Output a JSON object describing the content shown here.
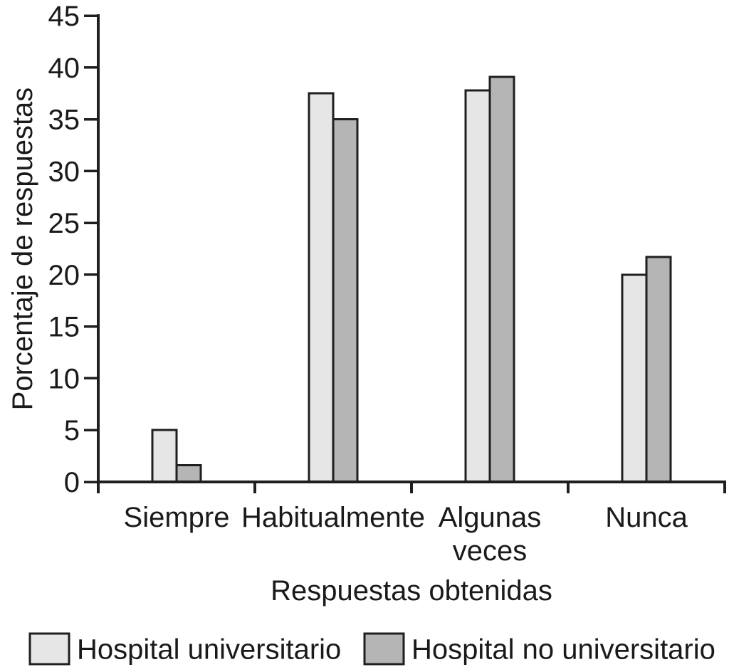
{
  "figure": {
    "background": "#ffffff"
  },
  "chart_data": {
    "type": "bar",
    "title": "",
    "categories": [
      "Siempre",
      "Habitualmente",
      "Algunas\nveces",
      "Nunca"
    ],
    "series": [
      {
        "name": "Hospital universitario",
        "color": "#e6e6e6",
        "values": [
          5.0,
          37.5,
          37.8,
          20.0
        ]
      },
      {
        "name": "Hospital no universitario",
        "color": "#b5b5b5",
        "values": [
          1.6,
          35.0,
          39.1,
          21.7
        ]
      }
    ],
    "xlabel": "Respuestas obtenidas",
    "ylabel": "Porcentaje de respuestas",
    "ylim": [
      0,
      45
    ],
    "ytick_step": 5,
    "grid": false,
    "legend_position": "bottom",
    "bar_outline_color": "#1f1f1f",
    "axis_color": "#1f1f1f",
    "text_color": "#1a1a1a"
  }
}
